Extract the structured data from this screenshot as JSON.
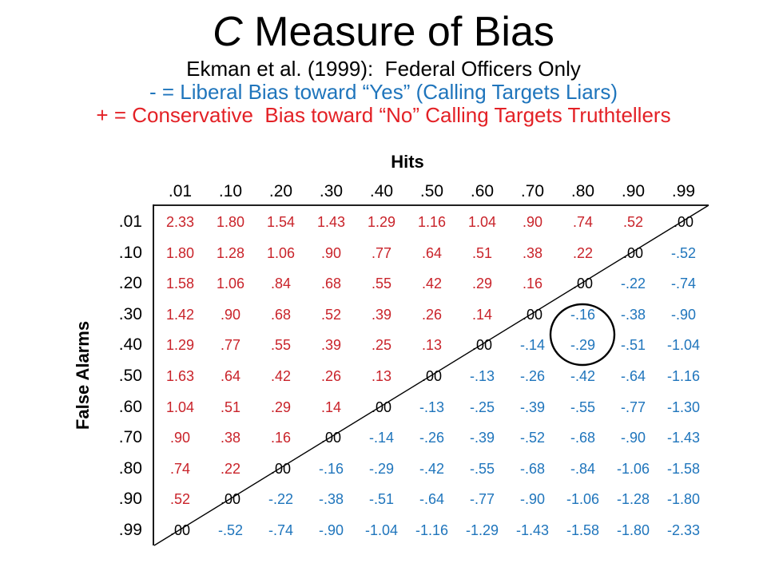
{
  "header": {
    "title_c": "C",
    "title_rest": " Measure of Bias",
    "subtitle": "Ekman et al. (1999):  Federal Officers Only",
    "legend_negative": "- = Liberal Bias toward “Yes” (Calling Targets Liars)",
    "legend_positive": "+ = Conservative  Bias toward “No” Calling Targets Truthtellers"
  },
  "colors": {
    "positive_value": "#C9232A",
    "negative_value": "#1F75BC",
    "zero_value": "#000000",
    "legend_negative": "#1F75BC",
    "legend_positive": "#E32126"
  },
  "chart_data": {
    "type": "table",
    "title": "C Measure of Bias",
    "subtitle": "Ekman et al. (1999): Federal Officers Only",
    "xlabel": "Hits",
    "ylabel": "False Alarms",
    "columns": [
      ".01",
      ".10",
      ".20",
      ".30",
      ".40",
      ".50",
      ".60",
      ".70",
      ".80",
      ".90",
      ".99"
    ],
    "rows": [
      ".01",
      ".10",
      ".20",
      ".30",
      ".40",
      ".50",
      ".60",
      ".70",
      ".80",
      ".90",
      ".99"
    ],
    "values": [
      [
        "2.33",
        "1.80",
        "1.54",
        "1.43",
        "1.29",
        "1.16",
        "1.04",
        ".90",
        ".74",
        ".52",
        ".00"
      ],
      [
        "1.80",
        "1.28",
        "1.06",
        ".90",
        ".77",
        ".64",
        ".51",
        ".38",
        ".22",
        ".00",
        "-.52"
      ],
      [
        "1.58",
        "1.06",
        ".84",
        ".68",
        ".55",
        ".42",
        ".29",
        ".16",
        ".00",
        "-.22",
        "-.74"
      ],
      [
        "1.42",
        ".90",
        ".68",
        ".52",
        ".39",
        ".26",
        ".14",
        ".00",
        "-.16",
        "-.38",
        "-.90"
      ],
      [
        "1.29",
        ".77",
        ".55",
        ".39",
        ".25",
        ".13",
        ".00",
        "-.14",
        "-.29",
        "-.51",
        "-1.04"
      ],
      [
        "1.63",
        ".64",
        ".42",
        ".26",
        ".13",
        ".00",
        "-.13",
        "-.26",
        "-.42",
        "-.64",
        "-1.16"
      ],
      [
        "1.04",
        ".51",
        ".29",
        ".14",
        ".00",
        "-.13",
        "-.25",
        "-.39",
        "-.55",
        "-.77",
        "-1.30"
      ],
      [
        ".90",
        ".38",
        ".16",
        ".00",
        "-.14",
        "-.26",
        "-.39",
        "-.52",
        "-.68",
        "-.90",
        "-1.43"
      ],
      [
        ".74",
        ".22",
        ".00",
        "-.16",
        "-.29",
        "-.42",
        "-.55",
        "-.68",
        "-.84",
        "-1.06",
        "-1.58"
      ],
      [
        ".52",
        ".00",
        "-.22",
        "-.38",
        "-.51",
        "-.64",
        "-.77",
        "-.90",
        "-1.06",
        "-1.28",
        "-1.80"
      ],
      [
        ".00",
        "-.52",
        "-.74",
        "-.90",
        "-1.04",
        "-1.16",
        "-1.29",
        "-1.43",
        "-1.58",
        "-1.80",
        "-2.33"
      ]
    ],
    "color_coding": {
      "positive": "red (conservative bias toward No)",
      "negative": "blue (liberal bias toward Yes)",
      "zero": "black, along diagonal"
    },
    "annotations": {
      "diagonal_line": "straight line from top-right corner through the .00 cells to the bottom-left corner",
      "circled_cells": [
        {
          "row": ".30",
          "column": ".80",
          "value": "-.16"
        },
        {
          "row": ".40",
          "column": ".80",
          "value": "-.29"
        }
      ]
    },
    "legend_position": "above table"
  }
}
